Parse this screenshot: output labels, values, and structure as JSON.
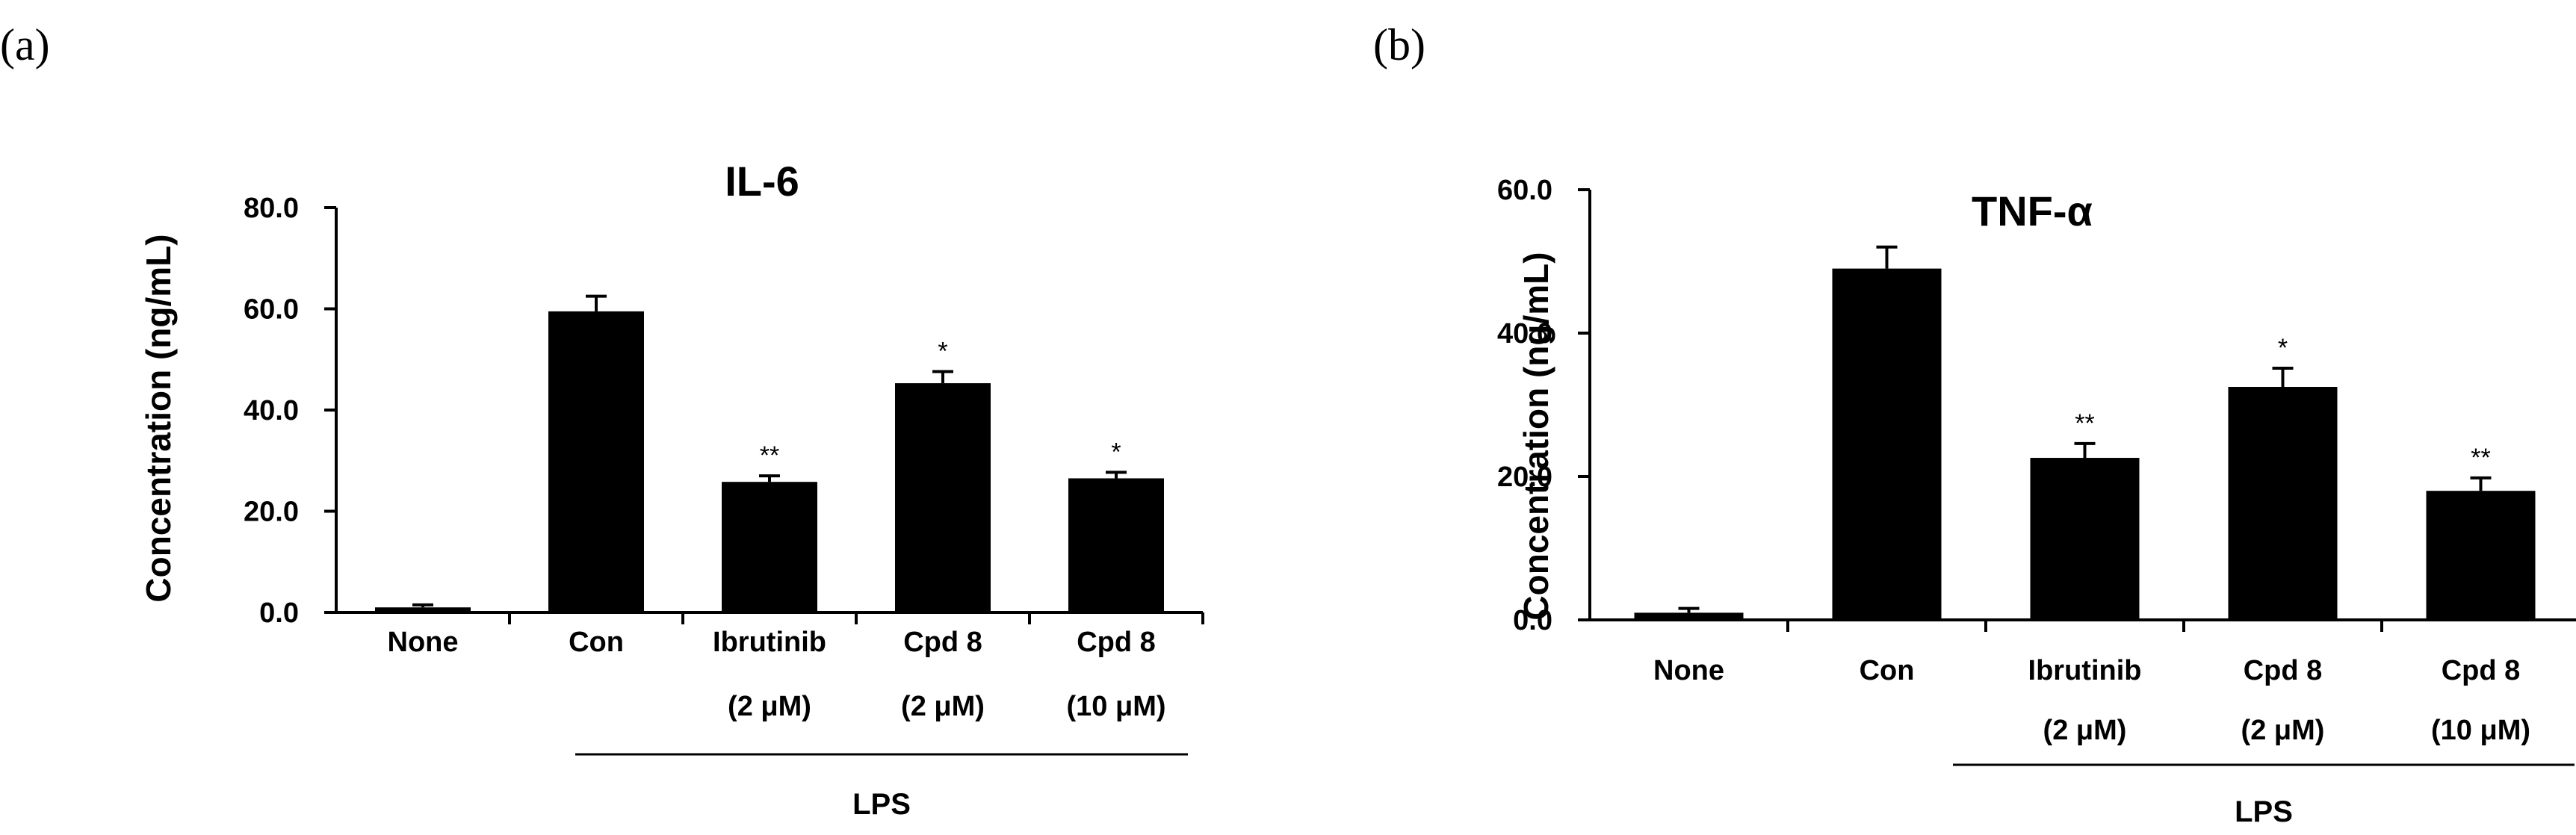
{
  "chart_data": [
    {
      "type": "bar",
      "panel_label": "(a)",
      "title": "IL-6",
      "ylabel": "Concentration (ng/mL)",
      "xlabel": "",
      "ylim": [
        0,
        80
      ],
      "yticks": [
        "0.0",
        "20.0",
        "40.0",
        "60.0",
        "80.0"
      ],
      "categories": [
        "None",
        "Con",
        "Ibrutinib",
        "Cpd 8",
        "Cpd 8"
      ],
      "category_sub": [
        "",
        "",
        "(2 μM)",
        "(2 μM)",
        "(10 μM)"
      ],
      "values": [
        1.0,
        59.5,
        25.8,
        45.3,
        26.5
      ],
      "errors": [
        0.5,
        3.0,
        1.2,
        2.3,
        1.2
      ],
      "significance": [
        "",
        "",
        "**",
        "*",
        "*"
      ],
      "group_label": "LPS",
      "group_range": [
        1,
        4
      ],
      "bar_color": "#000000",
      "grid": false
    },
    {
      "type": "bar",
      "panel_label": "(b)",
      "title": "TNF-α",
      "ylabel": "Concentration (ng/mL)",
      "xlabel": "",
      "ylim": [
        0,
        60
      ],
      "yticks": [
        "0.0",
        "20.0",
        "40.0",
        "60.0"
      ],
      "categories": [
        "None",
        "Con",
        "Ibrutinib",
        "Cpd 8",
        "Cpd 8"
      ],
      "category_sub": [
        "",
        "",
        "(2 μM)",
        "(2 μM)",
        "(10 μM)"
      ],
      "values": [
        1.0,
        49.0,
        22.6,
        32.5,
        18.0
      ],
      "errors": [
        0.6,
        3.0,
        2.0,
        2.6,
        1.8
      ],
      "significance": [
        "",
        "",
        "**",
        "*",
        "**"
      ],
      "group_label": "LPS",
      "group_range": [
        1,
        4
      ],
      "bar_color": "#000000",
      "grid": false
    }
  ]
}
